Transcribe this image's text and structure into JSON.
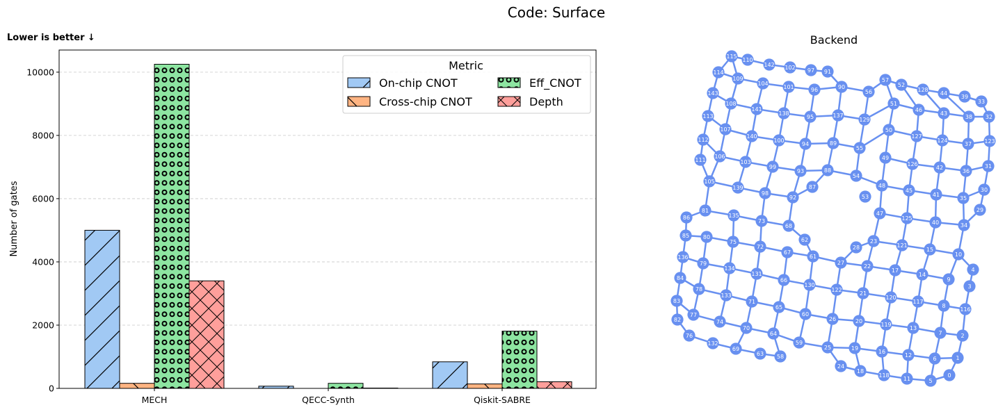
{
  "figure_title": "Code: Surface",
  "chart_data": [
    {
      "type": "bar",
      "title": "",
      "annotation": "Lower is better ↓",
      "xlabel": "",
      "ylabel": "Number of gates",
      "categories": [
        "MECH",
        "QECC-Synth",
        "Qiskit-SABRE"
      ],
      "ylim": [
        0,
        10700
      ],
      "yticks": [
        0,
        2000,
        4000,
        6000,
        8000,
        10000
      ],
      "grid": "y-dashed",
      "legend": {
        "title": "Metric",
        "placement": "top-right",
        "columns": 2
      },
      "series": [
        {
          "name": "On-chip CNOT",
          "values": [
            5000,
            70,
            840
          ],
          "color": "#a1c9f4",
          "hatch": "diagonal-forward"
        },
        {
          "name": "Cross-chip CNOT",
          "values": [
            160,
            0,
            140
          ],
          "color": "#ffb482",
          "hatch": "diagonal-back"
        },
        {
          "name": "Eff_CNOT",
          "values": [
            10250,
            160,
            1810
          ],
          "color": "#8de5a1",
          "hatch": "circles"
        },
        {
          "name": "Depth",
          "values": [
            3400,
            10,
            210
          ],
          "color": "#ff9f9b",
          "hatch": "cross"
        }
      ]
    },
    {
      "type": "network",
      "title": "Backend",
      "node_color": "#6890f0",
      "edge_color": "#6890f0",
      "node_labels": [
        "0",
        "1",
        "2",
        "3",
        "4",
        "5",
        "6",
        "7",
        "8",
        "9",
        "10",
        "11",
        "12",
        "13",
        "14",
        "15",
        "16",
        "17",
        "18",
        "19",
        "20",
        "21",
        "22",
        "23",
        "24",
        "25",
        "26",
        "27",
        "28",
        "29",
        "30",
        "31",
        "32",
        "33",
        "34",
        "35",
        "36",
        "37",
        "38",
        "39",
        "40",
        "41",
        "42",
        "43",
        "44",
        "45",
        "46",
        "47",
        "48",
        "49",
        "50",
        "51",
        "52",
        "53",
        "54",
        "55",
        "56",
        "57",
        "58",
        "59",
        "60",
        "61",
        "62",
        "63",
        "64",
        "65",
        "66",
        "67",
        "68",
        "69",
        "70",
        "71",
        "72",
        "73",
        "74",
        "75",
        "76",
        "77",
        "78",
        "79",
        "80",
        "81",
        "82",
        "83",
        "84",
        "85",
        "86",
        "87",
        "88",
        "89",
        "90",
        "91",
        "92",
        "93",
        "94",
        "95",
        "96",
        "97",
        "98",
        "99",
        "100",
        "101",
        "102",
        "103",
        "104",
        "105",
        "106",
        "107",
        "108",
        "109",
        "110",
        "111",
        "112",
        "113",
        "114",
        "115",
        "116",
        "117",
        "118",
        "119",
        "120",
        "121",
        "122",
        "123",
        "124",
        "125",
        "126",
        "127",
        "128",
        "129",
        "130",
        "131",
        "132",
        "133",
        "134",
        "135",
        "136",
        "137",
        "138",
        "139",
        "140",
        "141",
        "142",
        "143"
      ]
    }
  ]
}
